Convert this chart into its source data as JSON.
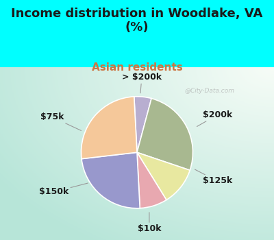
{
  "title": "Income distribution in Woodlake, VA\n(%)",
  "subtitle": "Asian residents",
  "title_fontsize": 13,
  "subtitle_fontsize": 11,
  "title_color": "#1a1a1a",
  "subtitle_color": "#cc7744",
  "background_color": "#00FFFF",
  "slices": [
    {
      "label": "> $200k",
      "value": 5,
      "color": "#b8aed0"
    },
    {
      "label": "$200k",
      "value": 26,
      "color": "#a8b890"
    },
    {
      "label": "$125k",
      "value": 11,
      "color": "#e8e8a0"
    },
    {
      "label": "$10k",
      "value": 8,
      "color": "#e8a8b0"
    },
    {
      "label": "$150k",
      "value": 24,
      "color": "#9898cc"
    },
    {
      "label": "$75k",
      "value": 26,
      "color": "#f5c89a"
    }
  ],
  "label_fontsize": 9,
  "label_color": "#1a1a1a",
  "watermark": "@City-Data.com",
  "startangle": 93
}
